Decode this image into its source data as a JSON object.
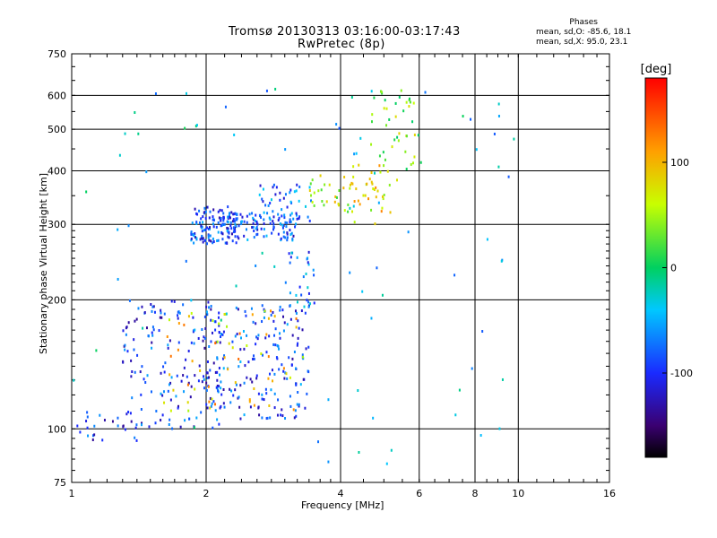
{
  "title": {
    "line1": "Tromsø 20130313 03:16:00-03:17:43",
    "line2": "RwPretec (8p)"
  },
  "stats": {
    "heading": "Phases",
    "o_line": "mean, sd,O: -85.6, 18.1",
    "x_line": "mean, sd,X:  95.0, 23.1"
  },
  "chart_data": {
    "type": "scatter",
    "xlabel": "Frequency [MHz]",
    "ylabel": "Stationary phase Virtual Height [km]",
    "xscale": "log",
    "yscale": "log",
    "xlim": [
      1,
      16
    ],
    "ylim": [
      75,
      750
    ],
    "x_ticks": [
      1,
      2,
      4,
      6,
      8,
      10,
      16
    ],
    "y_ticks": [
      75,
      100,
      200,
      300,
      400,
      500,
      600,
      750
    ],
    "x_gridlines": [
      2,
      4,
      6,
      8,
      10
    ],
    "y_gridlines": [
      100,
      200,
      300,
      400,
      500,
      600
    ],
    "grid": true,
    "colorbar": {
      "label": "[deg]",
      "ticks": [
        100,
        0,
        -100
      ],
      "range": [
        -180,
        180
      ],
      "colors": [
        "#000000",
        "#3a0070",
        "#1a2aff",
        "#00c8ff",
        "#00d060",
        "#d8ff00",
        "#ffa000",
        "#ff0000"
      ]
    },
    "clusters": [
      {
        "f": [
          1.85,
          2.35
        ],
        "h": [
          270,
          330
        ],
        "phase": -90,
        "n": 140
      },
      {
        "f": [
          2.3,
          3.2
        ],
        "h": [
          275,
          320
        ],
        "phase": -85,
        "n": 90
      },
      {
        "f": [
          2.6,
          3.5
        ],
        "h": [
          300,
          380
        ],
        "phase": -75,
        "n": 45
      },
      {
        "f": [
          3.4,
          4.3
        ],
        "h": [
          320,
          390
        ],
        "phase": 60,
        "n": 30
      },
      {
        "f": [
          4.2,
          5.2
        ],
        "h": [
          300,
          420
        ],
        "phase": 80,
        "n": 35
      },
      {
        "f": [
          1.3,
          2.2
        ],
        "h": [
          100,
          200
        ],
        "phase": -95,
        "n": 160
      },
      {
        "f": [
          2.0,
          3.4
        ],
        "h": [
          105,
          195
        ],
        "phase": -90,
        "n": 190
      },
      {
        "f": [
          1.6,
          3.3
        ],
        "h": [
          110,
          190
        ],
        "phase": 90,
        "n": 60
      },
      {
        "f": [
          3.05,
          3.5
        ],
        "h": [
          190,
          260
        ],
        "phase": -70,
        "n": 30
      },
      {
        "f": [
          1.0,
          1.4
        ],
        "h": [
          92,
          110
        ],
        "phase": -100,
        "n": 25
      },
      {
        "f": [
          4.6,
          5.9
        ],
        "h": [
          380,
          620
        ],
        "phase": 40,
        "n": 40
      },
      {
        "f": [
          1.0,
          10.0
        ],
        "h": [
          80,
          650
        ],
        "phase": -40,
        "n": 90
      }
    ]
  }
}
